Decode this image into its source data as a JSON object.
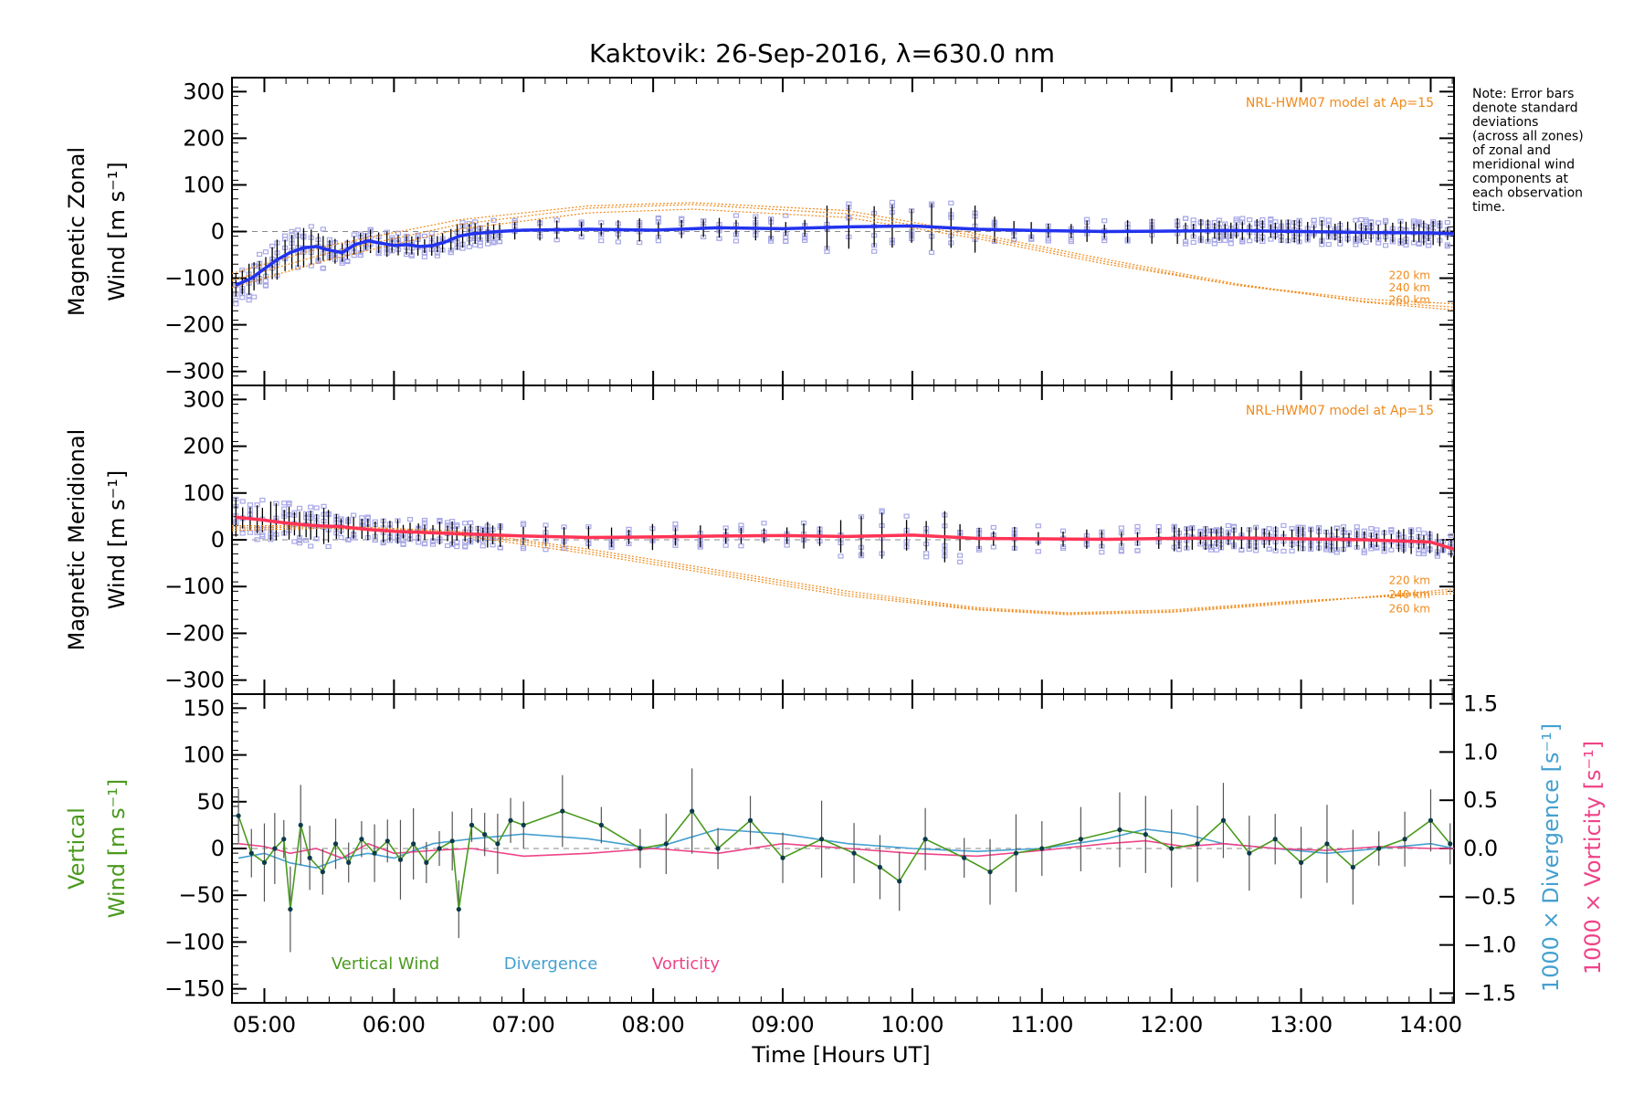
{
  "title": "Kaktovik: 26-Sep-2016, λ=630.0 nm",
  "x_axis": {
    "label": "Time [Hours UT]",
    "range_hours": [
      4.75,
      14.18
    ],
    "ticks": [
      {
        "v": 5,
        "label": "05:00"
      },
      {
        "v": 6,
        "label": "06:00"
      },
      {
        "v": 7,
        "label": "07:00"
      },
      {
        "v": 8,
        "label": "08:00"
      },
      {
        "v": 9,
        "label": "09:00"
      },
      {
        "v": 10,
        "label": "10:00"
      },
      {
        "v": 11,
        "label": "11:00"
      },
      {
        "v": 12,
        "label": "12:00"
      },
      {
        "v": 13,
        "label": "13:00"
      },
      {
        "v": 14,
        "label": "14:00"
      }
    ]
  },
  "note": [
    "Note: Error bars",
    "denote standard",
    "deviations",
    "(across all zones)",
    "of zonal and",
    "meridional wind",
    "components at",
    "each observation",
    "time."
  ],
  "colors": {
    "zonal": "#2233ee",
    "meridional": "#ff3355",
    "model": "#f08a1a",
    "vertical": "#4a9a1e",
    "divergence": "#44a0d0",
    "vorticity": "#ee4488",
    "zone_markers": "#a8a8e8",
    "errorbar": "#000000"
  },
  "chart_data": [
    {
      "type": "line",
      "panel": "zonal",
      "ylabel_line1": "Magnetic Zonal",
      "ylabel_line2": "Wind [m s⁻¹]",
      "ylim": [
        -330,
        330
      ],
      "yticks": [
        -300,
        -200,
        -100,
        0,
        100,
        200,
        300
      ],
      "model_label": "NRL-HWM07 model at Ap=15",
      "model_altitudes": [
        "220 km",
        "240 km",
        "260 km"
      ],
      "series": [
        {
          "x": [
            4.78,
            4.9,
            5.0,
            5.1,
            5.2,
            5.3,
            5.4,
            5.5,
            5.6,
            5.7,
            5.8,
            5.9,
            6.0,
            6.1,
            6.2,
            6.3,
            6.4,
            6.5,
            6.6,
            6.8,
            7.0,
            7.5,
            8.0,
            8.5,
            9.0,
            9.5,
            10.0,
            10.5,
            11.0,
            11.5,
            12.0,
            12.5,
            13.0,
            13.5,
            14.0,
            14.18
          ],
          "values": [
            -115,
            -100,
            -80,
            -60,
            -45,
            -35,
            -32,
            -40,
            -45,
            -28,
            -20,
            -25,
            -30,
            -28,
            -32,
            -30,
            -22,
            -10,
            -5,
            0,
            3,
            5,
            3,
            8,
            6,
            10,
            12,
            5,
            2,
            0,
            1,
            2,
            0,
            -2,
            -3,
            -5
          ]
        }
      ],
      "model_series": [
        {
          "name": "220 km",
          "x": [
            4.75,
            5.5,
            6.5,
            7.5,
            8.3,
            9.5,
            10.5,
            11.5,
            12.5,
            13.5,
            14.18
          ],
          "values": [
            -120,
            -60,
            5,
            40,
            48,
            30,
            -15,
            -70,
            -115,
            -145,
            -155
          ]
        },
        {
          "name": "240 km",
          "x": [
            4.75,
            5.5,
            6.5,
            7.5,
            8.3,
            9.5,
            10.5,
            11.5,
            12.5,
            13.5,
            14.18
          ],
          "values": [
            -105,
            -45,
            15,
            50,
            58,
            38,
            -10,
            -65,
            -115,
            -150,
            -162
          ]
        },
        {
          "name": "260 km",
          "x": [
            4.75,
            5.5,
            6.5,
            7.5,
            8.3,
            9.5,
            10.5,
            11.5,
            12.5,
            13.5,
            14.18
          ],
          "values": [
            -90,
            -30,
            25,
            55,
            62,
            45,
            -5,
            -60,
            -112,
            -152,
            -168
          ]
        }
      ]
    },
    {
      "type": "line",
      "panel": "meridional",
      "ylabel_line1": "Magnetic Meridional",
      "ylabel_line2": "Wind [m s⁻¹]",
      "ylim": [
        -330,
        330
      ],
      "yticks": [
        -300,
        -200,
        -100,
        0,
        100,
        200,
        300
      ],
      "model_label": "NRL-HWM07 model at Ap=15",
      "model_altitudes": [
        "220 km",
        "240 km",
        "260 km"
      ],
      "series": [
        {
          "x": [
            4.78,
            4.9,
            5.0,
            5.1,
            5.2,
            5.4,
            5.6,
            5.8,
            6.0,
            6.3,
            6.6,
            7.0,
            7.5,
            8.0,
            8.5,
            9.0,
            9.5,
            10.0,
            10.5,
            11.0,
            11.5,
            12.0,
            12.5,
            13.0,
            13.5,
            14.0,
            14.18
          ],
          "values": [
            48,
            45,
            42,
            38,
            35,
            30,
            28,
            22,
            18,
            15,
            12,
            8,
            5,
            6,
            8,
            9,
            7,
            10,
            3,
            2,
            1,
            3,
            4,
            2,
            0,
            -5,
            -20
          ]
        }
      ],
      "model_series": [
        {
          "name": "220 km",
          "x": [
            4.75,
            5.5,
            6.5,
            7.5,
            8.5,
            9.5,
            10.5,
            11.2,
            12.0,
            13.0,
            14.18
          ],
          "values": [
            20,
            25,
            10,
            -30,
            -75,
            -120,
            -150,
            -160,
            -155,
            -135,
            -105
          ]
        },
        {
          "name": "240 km",
          "x": [
            4.75,
            5.5,
            6.5,
            7.5,
            8.5,
            9.5,
            10.5,
            11.2,
            12.0,
            13.0,
            14.18
          ],
          "values": [
            25,
            28,
            15,
            -25,
            -70,
            -115,
            -148,
            -158,
            -153,
            -132,
            -110
          ]
        },
        {
          "name": "260 km",
          "x": [
            4.75,
            5.5,
            6.5,
            7.5,
            8.5,
            9.5,
            10.5,
            11.2,
            12.0,
            13.0,
            14.18
          ],
          "values": [
            30,
            30,
            18,
            -20,
            -65,
            -110,
            -145,
            -156,
            -150,
            -130,
            -115
          ]
        }
      ]
    },
    {
      "type": "line",
      "panel": "vertical",
      "ylabel_line1": "Vertical",
      "ylabel_line2": "Wind [m s⁻¹]",
      "ylim": [
        -165,
        165
      ],
      "yticks": [
        -150,
        -100,
        -50,
        0,
        50,
        100,
        150
      ],
      "y2label_divergence": "1000 × Divergence [s⁻¹]",
      "y2label_vorticity": "1000 × Vorticity [s⁻¹]",
      "y2lim": [
        -1.6,
        1.6
      ],
      "y2ticks": [
        {
          "v": -1.5,
          "label": "−1.5"
        },
        {
          "v": -1.0,
          "label": "−1.0"
        },
        {
          "v": -0.5,
          "label": "−0.5"
        },
        {
          "v": 0.0,
          "label": "0.0"
        },
        {
          "v": 0.5,
          "label": "0.5"
        },
        {
          "v": 1.0,
          "label": "1.0"
        },
        {
          "v": 1.5,
          "label": "1.5"
        }
      ],
      "legend": [
        "Vertical Wind",
        "Divergence",
        "Vorticity"
      ],
      "series": [
        {
          "name": "Vertical Wind",
          "x": [
            4.8,
            4.9,
            5.0,
            5.08,
            5.15,
            5.2,
            5.28,
            5.35,
            5.45,
            5.55,
            5.65,
            5.75,
            5.85,
            5.95,
            6.05,
            6.15,
            6.25,
            6.35,
            6.45,
            6.5,
            6.6,
            6.7,
            6.8,
            6.9,
            7.0,
            7.3,
            7.6,
            7.9,
            8.1,
            8.3,
            8.5,
            8.75,
            9.0,
            9.3,
            9.55,
            9.75,
            9.9,
            10.1,
            10.4,
            10.6,
            10.8,
            11.0,
            11.3,
            11.6,
            11.8,
            12.0,
            12.2,
            12.4,
            12.6,
            12.8,
            13.0,
            13.2,
            13.4,
            13.6,
            13.8,
            14.0,
            14.15
          ],
          "values": [
            35,
            -5,
            -15,
            0,
            10,
            -65,
            25,
            -10,
            -25,
            5,
            -15,
            10,
            -5,
            8,
            -12,
            5,
            -15,
            0,
            8,
            -65,
            25,
            15,
            5,
            30,
            25,
            40,
            25,
            0,
            5,
            40,
            0,
            30,
            -10,
            10,
            -5,
            -20,
            -35,
            10,
            -10,
            -25,
            -5,
            0,
            10,
            20,
            15,
            0,
            5,
            30,
            -5,
            10,
            -15,
            5,
            -20,
            0,
            10,
            30,
            5
          ]
        },
        {
          "name": "Divergence",
          "x": [
            4.8,
            5.0,
            5.2,
            5.4,
            5.6,
            5.8,
            6.0,
            6.3,
            6.6,
            7.0,
            7.5,
            8.0,
            8.5,
            9.0,
            9.5,
            10.0,
            10.5,
            11.0,
            11.5,
            11.8,
            12.1,
            12.4,
            12.8,
            13.2,
            13.6,
            14.0,
            14.18
          ],
          "values": [
            -0.1,
            -0.05,
            -0.15,
            -0.2,
            -0.1,
            -0.05,
            -0.1,
            0.05,
            0.1,
            0.15,
            0.1,
            0.0,
            0.2,
            0.15,
            0.05,
            0.0,
            -0.03,
            0.0,
            0.1,
            0.2,
            0.15,
            0.05,
            0.0,
            -0.05,
            0.0,
            0.05,
            0.0
          ]
        },
        {
          "name": "Vorticity",
          "x": [
            4.8,
            5.0,
            5.2,
            5.4,
            5.6,
            5.8,
            6.0,
            6.3,
            6.6,
            7.0,
            7.5,
            8.0,
            8.5,
            9.0,
            9.5,
            10.0,
            10.5,
            11.0,
            11.5,
            11.8,
            12.1,
            12.4,
            12.8,
            13.2,
            13.6,
            14.0,
            14.18
          ],
          "values": [
            0.05,
            0.02,
            -0.05,
            0.0,
            -0.1,
            0.05,
            -0.05,
            -0.02,
            0.0,
            -0.08,
            -0.05,
            0.0,
            -0.05,
            0.05,
            0.0,
            -0.05,
            -0.08,
            -0.02,
            0.05,
            0.08,
            0.02,
            0.05,
            0.0,
            -0.02,
            0.02,
            0.0,
            0.0
          ]
        }
      ]
    }
  ]
}
